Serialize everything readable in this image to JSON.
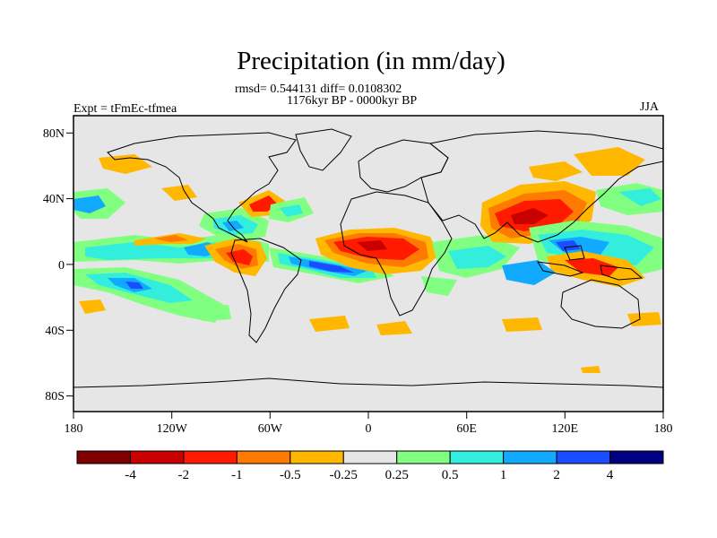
{
  "title": "Precipitation (in mm/day)",
  "stats": "rmsd= 0.544131 diff= 0.0108302",
  "period": "1176kyr BP - 0000kyr BP",
  "expt": "Expt = tFmEc-tfmea",
  "season": "JJA",
  "map": {
    "x_ticks": [
      "180",
      "120W",
      "60W",
      "0",
      "60E",
      "120E",
      "180"
    ],
    "y_ticks": [
      "80N",
      "40N",
      "0",
      "40S",
      "80S"
    ],
    "background_color": "#e6e6e6"
  },
  "colorbar": {
    "colors": [
      "#7f0000",
      "#c90000",
      "#ff1a00",
      "#ff7a00",
      "#ffb700",
      "#e6e6e6",
      "#80ff80",
      "#33eedd",
      "#12aaff",
      "#1a4dff",
      "#000080"
    ],
    "labels": [
      "-4",
      "-2",
      "-1",
      "-0.5",
      "-0.25",
      "0.25",
      "0.5",
      "1",
      "2",
      "4"
    ]
  }
}
